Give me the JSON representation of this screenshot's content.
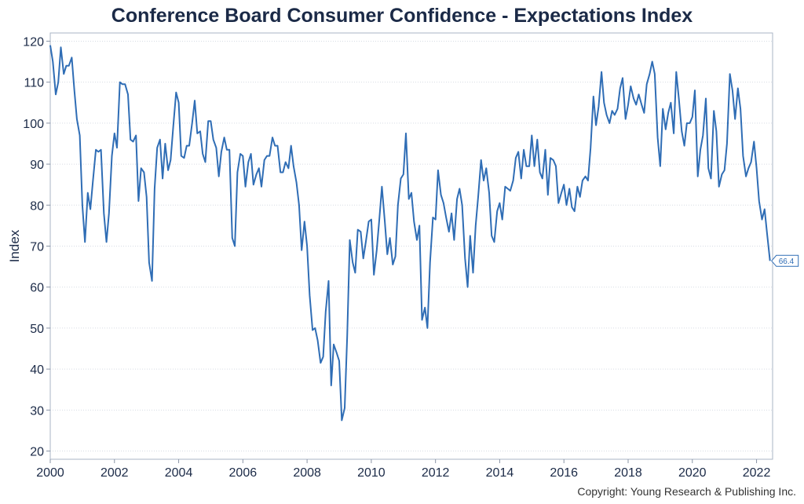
{
  "chart_data": {
    "type": "line",
    "title": "Conference Board Consumer Confidence - Expectations Index",
    "ylabel": "Index",
    "xlabel": "",
    "xlim": [
      2000,
      2022.5
    ],
    "ylim": [
      18,
      122
    ],
    "x_ticks": [
      2000,
      2002,
      2004,
      2006,
      2008,
      2010,
      2012,
      2014,
      2016,
      2018,
      2020,
      2022
    ],
    "y_ticks": [
      20,
      30,
      40,
      50,
      60,
      70,
      80,
      90,
      100,
      110,
      120
    ],
    "grid": "horizontal-dotted",
    "line_color": "#2f6db5",
    "last_value_label": "66.4",
    "series": [
      {
        "points": [
          [
            2000.0,
            119
          ],
          [
            2000.08,
            115
          ],
          [
            2000.17,
            107
          ],
          [
            2000.25,
            110
          ],
          [
            2000.33,
            118.5
          ],
          [
            2000.42,
            112
          ],
          [
            2000.5,
            114
          ],
          [
            2000.58,
            114
          ],
          [
            2000.67,
            116
          ],
          [
            2000.75,
            108
          ],
          [
            2000.83,
            101
          ],
          [
            2000.92,
            97
          ],
          [
            2001.0,
            80
          ],
          [
            2001.08,
            71
          ],
          [
            2001.17,
            83
          ],
          [
            2001.25,
            79
          ],
          [
            2001.33,
            86
          ],
          [
            2001.42,
            93.5
          ],
          [
            2001.5,
            93
          ],
          [
            2001.58,
            93.5
          ],
          [
            2001.67,
            78
          ],
          [
            2001.75,
            71
          ],
          [
            2001.83,
            78
          ],
          [
            2001.92,
            92
          ],
          [
            2002.0,
            97.5
          ],
          [
            2002.08,
            94
          ],
          [
            2002.17,
            110
          ],
          [
            2002.25,
            109.5
          ],
          [
            2002.33,
            109.5
          ],
          [
            2002.42,
            107
          ],
          [
            2002.5,
            96
          ],
          [
            2002.58,
            95.5
          ],
          [
            2002.67,
            97
          ],
          [
            2002.75,
            81
          ],
          [
            2002.83,
            89
          ],
          [
            2002.92,
            88
          ],
          [
            2003.0,
            82
          ],
          [
            2003.08,
            66
          ],
          [
            2003.17,
            61.5
          ],
          [
            2003.25,
            84
          ],
          [
            2003.33,
            94
          ],
          [
            2003.42,
            96
          ],
          [
            2003.5,
            86.5
          ],
          [
            2003.58,
            95
          ],
          [
            2003.67,
            88.5
          ],
          [
            2003.75,
            91
          ],
          [
            2003.83,
            99
          ],
          [
            2003.92,
            107.5
          ],
          [
            2004.0,
            105
          ],
          [
            2004.08,
            92
          ],
          [
            2004.17,
            91.5
          ],
          [
            2004.25,
            94.5
          ],
          [
            2004.33,
            94.5
          ],
          [
            2004.42,
            100
          ],
          [
            2004.5,
            105.5
          ],
          [
            2004.58,
            97.5
          ],
          [
            2004.67,
            98
          ],
          [
            2004.75,
            92.5
          ],
          [
            2004.83,
            90.5
          ],
          [
            2004.92,
            100.5
          ],
          [
            2005.0,
            100.5
          ],
          [
            2005.08,
            96
          ],
          [
            2005.17,
            94
          ],
          [
            2005.25,
            87
          ],
          [
            2005.33,
            93
          ],
          [
            2005.42,
            96.5
          ],
          [
            2005.5,
            93.5
          ],
          [
            2005.58,
            93.5
          ],
          [
            2005.67,
            72
          ],
          [
            2005.75,
            70
          ],
          [
            2005.83,
            88
          ],
          [
            2005.92,
            92.5
          ],
          [
            2006.0,
            92
          ],
          [
            2006.08,
            84.5
          ],
          [
            2006.17,
            90.5
          ],
          [
            2006.25,
            92.5
          ],
          [
            2006.33,
            85
          ],
          [
            2006.42,
            87.5
          ],
          [
            2006.5,
            89
          ],
          [
            2006.58,
            84.5
          ],
          [
            2006.67,
            91
          ],
          [
            2006.75,
            92
          ],
          [
            2006.83,
            92
          ],
          [
            2006.92,
            96.5
          ],
          [
            2007.0,
            94.5
          ],
          [
            2007.08,
            94.5
          ],
          [
            2007.17,
            88
          ],
          [
            2007.25,
            88
          ],
          [
            2007.33,
            90.5
          ],
          [
            2007.42,
            89
          ],
          [
            2007.5,
            94.5
          ],
          [
            2007.58,
            89.5
          ],
          [
            2007.67,
            85.5
          ],
          [
            2007.75,
            80
          ],
          [
            2007.83,
            69
          ],
          [
            2007.92,
            76
          ],
          [
            2008.0,
            70
          ],
          [
            2008.08,
            58
          ],
          [
            2008.17,
            49.5
          ],
          [
            2008.25,
            50
          ],
          [
            2008.33,
            47
          ],
          [
            2008.42,
            41.5
          ],
          [
            2008.5,
            43
          ],
          [
            2008.58,
            54
          ],
          [
            2008.67,
            61.5
          ],
          [
            2008.75,
            36
          ],
          [
            2008.83,
            46
          ],
          [
            2008.92,
            44
          ],
          [
            2009.0,
            42
          ],
          [
            2009.08,
            27.5
          ],
          [
            2009.17,
            30.5
          ],
          [
            2009.25,
            48
          ],
          [
            2009.33,
            71.5
          ],
          [
            2009.42,
            66
          ],
          [
            2009.5,
            63.5
          ],
          [
            2009.58,
            74
          ],
          [
            2009.67,
            73.5
          ],
          [
            2009.75,
            67
          ],
          [
            2009.83,
            71
          ],
          [
            2009.92,
            76
          ],
          [
            2010.0,
            76.5
          ],
          [
            2010.08,
            63
          ],
          [
            2010.17,
            69
          ],
          [
            2010.25,
            76.5
          ],
          [
            2010.33,
            84.5
          ],
          [
            2010.42,
            76
          ],
          [
            2010.5,
            68
          ],
          [
            2010.58,
            72
          ],
          [
            2010.67,
            65.5
          ],
          [
            2010.75,
            67.5
          ],
          [
            2010.83,
            80
          ],
          [
            2010.92,
            86.5
          ],
          [
            2011.0,
            87.5
          ],
          [
            2011.08,
            97.5
          ],
          [
            2011.17,
            81.5
          ],
          [
            2011.25,
            83
          ],
          [
            2011.33,
            76
          ],
          [
            2011.42,
            71.5
          ],
          [
            2011.5,
            75
          ],
          [
            2011.58,
            52
          ],
          [
            2011.67,
            55
          ],
          [
            2011.75,
            50
          ],
          [
            2011.83,
            66
          ],
          [
            2011.92,
            77
          ],
          [
            2012.0,
            76.5
          ],
          [
            2012.08,
            88.5
          ],
          [
            2012.17,
            82.5
          ],
          [
            2012.25,
            80.5
          ],
          [
            2012.33,
            77
          ],
          [
            2012.42,
            73.5
          ],
          [
            2012.5,
            78
          ],
          [
            2012.58,
            71.5
          ],
          [
            2012.67,
            81.5
          ],
          [
            2012.75,
            84
          ],
          [
            2012.83,
            80
          ],
          [
            2012.92,
            67
          ],
          [
            2013.0,
            60
          ],
          [
            2013.08,
            72.5
          ],
          [
            2013.17,
            63.5
          ],
          [
            2013.25,
            75
          ],
          [
            2013.33,
            82
          ],
          [
            2013.42,
            91
          ],
          [
            2013.5,
            86
          ],
          [
            2013.58,
            89
          ],
          [
            2013.67,
            83
          ],
          [
            2013.75,
            72.5
          ],
          [
            2013.83,
            71
          ],
          [
            2013.92,
            78.5
          ],
          [
            2014.0,
            80.5
          ],
          [
            2014.08,
            76.5
          ],
          [
            2014.17,
            84.5
          ],
          [
            2014.25,
            84
          ],
          [
            2014.33,
            83.5
          ],
          [
            2014.42,
            86
          ],
          [
            2014.5,
            91.5
          ],
          [
            2014.58,
            93
          ],
          [
            2014.67,
            86.5
          ],
          [
            2014.75,
            93.5
          ],
          [
            2014.83,
            89.5
          ],
          [
            2014.92,
            89.5
          ],
          [
            2015.0,
            97
          ],
          [
            2015.08,
            89.5
          ],
          [
            2015.17,
            96
          ],
          [
            2015.25,
            88
          ],
          [
            2015.33,
            86.5
          ],
          [
            2015.42,
            93.5
          ],
          [
            2015.5,
            82.5
          ],
          [
            2015.58,
            91.5
          ],
          [
            2015.67,
            91
          ],
          [
            2015.75,
            89.5
          ],
          [
            2015.83,
            80.5
          ],
          [
            2015.92,
            83
          ],
          [
            2016.0,
            85
          ],
          [
            2016.08,
            80
          ],
          [
            2016.17,
            84
          ],
          [
            2016.25,
            79.5
          ],
          [
            2016.33,
            78.5
          ],
          [
            2016.42,
            84.5
          ],
          [
            2016.5,
            82
          ],
          [
            2016.58,
            86
          ],
          [
            2016.67,
            87
          ],
          [
            2016.75,
            86
          ],
          [
            2016.83,
            94
          ],
          [
            2016.92,
            106.5
          ],
          [
            2017.0,
            99.5
          ],
          [
            2017.08,
            104
          ],
          [
            2017.17,
            112.5
          ],
          [
            2017.25,
            105
          ],
          [
            2017.33,
            102
          ],
          [
            2017.42,
            100
          ],
          [
            2017.5,
            103
          ],
          [
            2017.58,
            102
          ],
          [
            2017.67,
            103.5
          ],
          [
            2017.75,
            108.5
          ],
          [
            2017.83,
            111
          ],
          [
            2017.92,
            101
          ],
          [
            2018.0,
            104.5
          ],
          [
            2018.08,
            109
          ],
          [
            2018.17,
            106
          ],
          [
            2018.25,
            104.5
          ],
          [
            2018.33,
            107
          ],
          [
            2018.42,
            104.5
          ],
          [
            2018.5,
            102.5
          ],
          [
            2018.58,
            109.5
          ],
          [
            2018.67,
            112
          ],
          [
            2018.75,
            115
          ],
          [
            2018.83,
            112
          ],
          [
            2018.92,
            96.5
          ],
          [
            2019.0,
            89.5
          ],
          [
            2019.08,
            103.5
          ],
          [
            2019.17,
            98.5
          ],
          [
            2019.25,
            102.5
          ],
          [
            2019.33,
            105
          ],
          [
            2019.42,
            97.5
          ],
          [
            2019.5,
            112.5
          ],
          [
            2019.58,
            106
          ],
          [
            2019.67,
            98
          ],
          [
            2019.75,
            94.5
          ],
          [
            2019.83,
            100
          ],
          [
            2019.92,
            100
          ],
          [
            2020.0,
            101.5
          ],
          [
            2020.08,
            108
          ],
          [
            2020.17,
            87
          ],
          [
            2020.25,
            93.5
          ],
          [
            2020.33,
            97
          ],
          [
            2020.42,
            106
          ],
          [
            2020.5,
            89
          ],
          [
            2020.58,
            86.5
          ],
          [
            2020.67,
            103
          ],
          [
            2020.75,
            98
          ],
          [
            2020.83,
            84.5
          ],
          [
            2020.92,
            87.5
          ],
          [
            2021.0,
            88.5
          ],
          [
            2021.08,
            95
          ],
          [
            2021.17,
            112
          ],
          [
            2021.25,
            108
          ],
          [
            2021.33,
            101
          ],
          [
            2021.42,
            108.5
          ],
          [
            2021.5,
            103.5
          ],
          [
            2021.58,
            92
          ],
          [
            2021.67,
            87
          ],
          [
            2021.75,
            89
          ],
          [
            2021.83,
            90.5
          ],
          [
            2021.92,
            95.5
          ],
          [
            2022.0,
            89
          ],
          [
            2022.08,
            81
          ],
          [
            2022.17,
            76.5
          ],
          [
            2022.25,
            79
          ],
          [
            2022.33,
            73
          ],
          [
            2022.42,
            66.4
          ]
        ]
      }
    ]
  },
  "footer": {
    "copyright": "Copyright: Young Research & Publishing Inc."
  }
}
